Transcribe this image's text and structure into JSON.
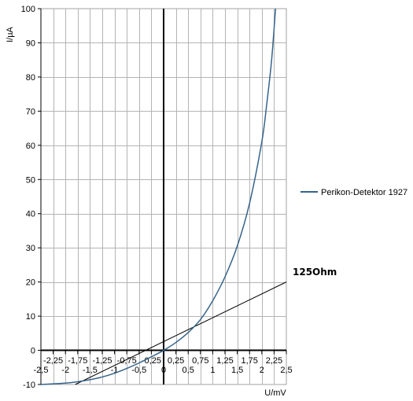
{
  "chart_data": {
    "type": "line",
    "title": "",
    "xlabel": "U/mV",
    "ylabel": "I/µA",
    "xlim": [
      -2.5,
      2.5
    ],
    "ylim": [
      -10,
      100
    ],
    "grid": true,
    "legend_position": "right",
    "x_ticks_lower": [
      "-2,5",
      "-2",
      "-1,5",
      "-1",
      "-0,5",
      "0",
      "0,5",
      "1",
      "1,5",
      "2",
      "2,5"
    ],
    "x_ticks_upper": [
      "-2,25",
      "-1,75",
      "-1,25",
      "-0,75",
      "-0,25",
      "0,25",
      "0,75",
      "1,25",
      "1,75",
      "2,25"
    ],
    "y_ticks": [
      "-10",
      "0",
      "10",
      "20",
      "30",
      "40",
      "50",
      "60",
      "70",
      "80",
      "90",
      "100"
    ],
    "series": [
      {
        "name": "Perikon-Detektor 1927",
        "color": "#36648b",
        "x": [
          -2.5,
          -2.25,
          -2.0,
          -1.75,
          -1.5,
          -1.25,
          -1.0,
          -0.75,
          -0.5,
          -0.25,
          0.0,
          0.25,
          0.5,
          0.75,
          1.0,
          1.25,
          1.5,
          1.75,
          2.0,
          2.1,
          2.2,
          2.28
        ],
        "y": [
          -10.0,
          -9.8,
          -9.6,
          -9.2,
          -8.6,
          -7.8,
          -6.7,
          -5.3,
          -3.7,
          -1.9,
          0.0,
          2.3,
          5.2,
          9.0,
          14.5,
          21.5,
          30.5,
          43.0,
          61.0,
          72.0,
          85.0,
          100.0
        ]
      }
    ],
    "load_line": {
      "label": "125Ohm",
      "color": "#000000",
      "x": [
        -1.8,
        2.5
      ],
      "y": [
        -10,
        20
      ]
    }
  }
}
